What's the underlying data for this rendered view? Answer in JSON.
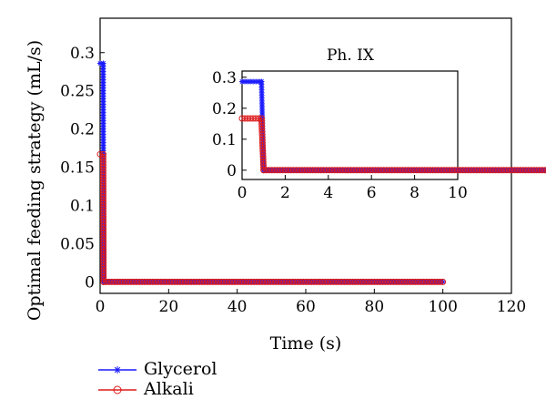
{
  "chart_data": {
    "type": "line",
    "xlabel": "Time (s)",
    "ylabel": "Optimal feeding strategy (mL/s)",
    "xlim": [
      0,
      120
    ],
    "ylim": [
      -0.015,
      0.345
    ],
    "xticks": [
      0,
      20,
      40,
      60,
      80,
      100,
      120
    ],
    "yticks": [
      0,
      0.05,
      0.1,
      0.15,
      0.2,
      0.25,
      0.3
    ],
    "xtick_labels": [
      "0",
      "20",
      "40",
      "60",
      "80",
      "100",
      "120"
    ],
    "ytick_labels": [
      "0",
      "0.05",
      "0.1",
      "0.15",
      "0.2",
      "0.25",
      "0.3"
    ],
    "legend_position": "below-left",
    "series": [
      {
        "name": "Glycerol",
        "color": "#1a1aff",
        "marker": "asterisk",
        "x": [
          0,
          0.9,
          1.0,
          100
        ],
        "y": [
          0.286,
          0.286,
          0,
          0
        ]
      },
      {
        "name": "Alkali",
        "color": "#dd1a1a",
        "marker": "circle",
        "x": [
          0,
          0.9,
          1.0,
          100
        ],
        "y": [
          0.167,
          0.167,
          0,
          0
        ]
      }
    ],
    "inset": {
      "title": "Ph. IX",
      "xlim": [
        0,
        10
      ],
      "ylim": [
        -0.03,
        0.32
      ],
      "xticks": [
        0,
        2,
        4,
        6,
        8,
        10
      ],
      "yticks": [
        0,
        0.1,
        0.2,
        0.3
      ],
      "xtick_labels": [
        "0",
        "2",
        "4",
        "6",
        "8",
        "10"
      ],
      "ytick_labels": [
        "0",
        "0.1",
        "0.2",
        "0.3"
      ]
    }
  }
}
